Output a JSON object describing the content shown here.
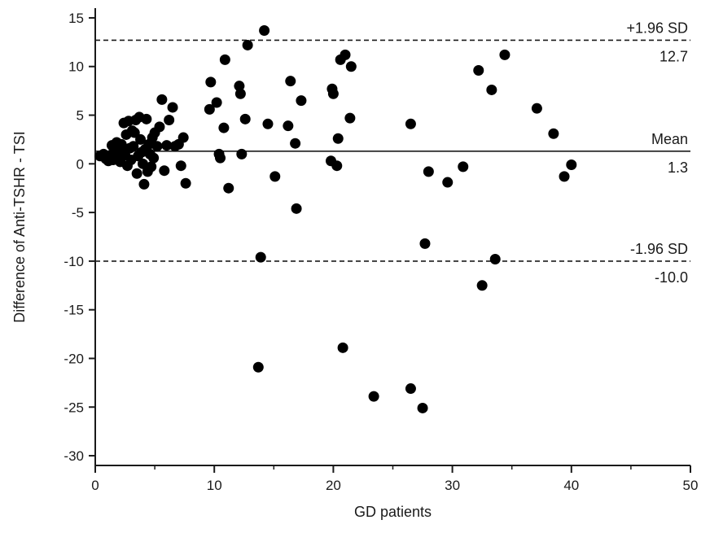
{
  "chart_data": {
    "type": "scatter",
    "xlabel": "GD patients",
    "ylabel": "Difference of Anti-TSHR - TSI",
    "xlim": [
      0,
      50
    ],
    "ylim": [
      -31,
      16
    ],
    "x_ticks": [
      0,
      10,
      20,
      30,
      40,
      50
    ],
    "y_ticks": [
      -30,
      -25,
      -20,
      -15,
      -10,
      -5,
      0,
      5,
      10,
      15
    ],
    "grid": false,
    "reference_lines": [
      {
        "name": "+1.96 SD",
        "value": 12.7,
        "value_label": "12.7",
        "style": "dashed"
      },
      {
        "name": "Mean",
        "value": 1.3,
        "value_label": "1.3",
        "style": "solid"
      },
      {
        "name": "-1.96 SD",
        "value": -10.0,
        "value_label": "-10.0",
        "style": "dashed"
      }
    ],
    "points": [
      {
        "x": 0.4,
        "y": 0.8
      },
      {
        "x": 0.7,
        "y": 1.0
      },
      {
        "x": 0.9,
        "y": 0.5
      },
      {
        "x": 1.1,
        "y": 0.3
      },
      {
        "x": 1.3,
        "y": 0.9
      },
      {
        "x": 1.4,
        "y": 1.9
      },
      {
        "x": 1.5,
        "y": 0.4
      },
      {
        "x": 1.6,
        "y": 1.2
      },
      {
        "x": 1.8,
        "y": 2.2
      },
      {
        "x": 1.9,
        "y": 0.6
      },
      {
        "x": 2.0,
        "y": 1.5
      },
      {
        "x": 2.1,
        "y": 0.2
      },
      {
        "x": 2.2,
        "y": 2.0
      },
      {
        "x": 2.3,
        "y": 1.1
      },
      {
        "x": 2.4,
        "y": 4.2
      },
      {
        "x": 2.5,
        "y": 0.9
      },
      {
        "x": 2.6,
        "y": 3.0
      },
      {
        "x": 2.7,
        "y": -0.2
      },
      {
        "x": 2.8,
        "y": 4.4
      },
      {
        "x": 2.9,
        "y": 1.6
      },
      {
        "x": 3.0,
        "y": 0.4
      },
      {
        "x": 3.1,
        "y": 3.4
      },
      {
        "x": 3.2,
        "y": 1.8
      },
      {
        "x": 3.3,
        "y": 3.2
      },
      {
        "x": 3.4,
        "y": 4.5
      },
      {
        "x": 3.5,
        "y": -1.0
      },
      {
        "x": 3.6,
        "y": 0.8
      },
      {
        "x": 3.7,
        "y": 4.8
      },
      {
        "x": 3.8,
        "y": 2.5
      },
      {
        "x": 3.9,
        "y": 1.2
      },
      {
        "x": 4.0,
        "y": 0.0
      },
      {
        "x": 4.1,
        "y": -2.1
      },
      {
        "x": 4.2,
        "y": 1.5
      },
      {
        "x": 4.3,
        "y": 4.6
      },
      {
        "x": 4.4,
        "y": -0.8
      },
      {
        "x": 4.5,
        "y": 2.0
      },
      {
        "x": 4.6,
        "y": 1.0
      },
      {
        "x": 4.7,
        "y": -0.3
      },
      {
        "x": 4.8,
        "y": 2.7
      },
      {
        "x": 4.9,
        "y": 0.6
      },
      {
        "x": 5.0,
        "y": 3.2
      },
      {
        "x": 5.2,
        "y": 1.8
      },
      {
        "x": 5.4,
        "y": 3.8
      },
      {
        "x": 5.6,
        "y": 6.6
      },
      {
        "x": 5.8,
        "y": -0.7
      },
      {
        "x": 6.0,
        "y": 1.9
      },
      {
        "x": 6.2,
        "y": 4.5
      },
      {
        "x": 6.5,
        "y": 5.8
      },
      {
        "x": 6.7,
        "y": 1.8
      },
      {
        "x": 7.0,
        "y": 2.0
      },
      {
        "x": 7.2,
        "y": -0.2
      },
      {
        "x": 7.4,
        "y": 2.7
      },
      {
        "x": 7.6,
        "y": -2.0
      },
      {
        "x": 9.6,
        "y": 5.6
      },
      {
        "x": 9.7,
        "y": 8.4
      },
      {
        "x": 10.2,
        "y": 6.3
      },
      {
        "x": 10.4,
        "y": 1.0
      },
      {
        "x": 10.5,
        "y": 0.6
      },
      {
        "x": 10.8,
        "y": 3.7
      },
      {
        "x": 10.9,
        "y": 10.7
      },
      {
        "x": 11.2,
        "y": -2.5
      },
      {
        "x": 12.1,
        "y": 8.0
      },
      {
        "x": 12.2,
        "y": 7.2
      },
      {
        "x": 12.3,
        "y": 1.0
      },
      {
        "x": 12.6,
        "y": 4.6
      },
      {
        "x": 12.8,
        "y": 12.2
      },
      {
        "x": 13.7,
        "y": -20.9
      },
      {
        "x": 13.9,
        "y": -9.6
      },
      {
        "x": 14.2,
        "y": 13.7
      },
      {
        "x": 14.5,
        "y": 4.1
      },
      {
        "x": 15.1,
        "y": -1.3
      },
      {
        "x": 16.2,
        "y": 3.9
      },
      {
        "x": 16.4,
        "y": 8.5
      },
      {
        "x": 16.8,
        "y": 2.1
      },
      {
        "x": 16.9,
        "y": -4.6
      },
      {
        "x": 17.3,
        "y": 6.5
      },
      {
        "x": 19.8,
        "y": 0.3
      },
      {
        "x": 19.9,
        "y": 7.7
      },
      {
        "x": 20.0,
        "y": 7.2
      },
      {
        "x": 20.3,
        "y": -0.2
      },
      {
        "x": 20.4,
        "y": 2.6
      },
      {
        "x": 20.6,
        "y": 10.7
      },
      {
        "x": 20.8,
        "y": -18.9
      },
      {
        "x": 21.0,
        "y": 11.2
      },
      {
        "x": 21.4,
        "y": 4.7
      },
      {
        "x": 21.5,
        "y": 10.0
      },
      {
        "x": 23.4,
        "y": -23.9
      },
      {
        "x": 26.5,
        "y": 4.1
      },
      {
        "x": 26.5,
        "y": -23.1
      },
      {
        "x": 27.5,
        "y": -25.1
      },
      {
        "x": 27.7,
        "y": -8.2
      },
      {
        "x": 28.0,
        "y": -0.8
      },
      {
        "x": 29.6,
        "y": -1.9
      },
      {
        "x": 30.9,
        "y": -0.3
      },
      {
        "x": 32.2,
        "y": 9.6
      },
      {
        "x": 32.5,
        "y": -12.5
      },
      {
        "x": 33.3,
        "y": 7.6
      },
      {
        "x": 33.6,
        "y": -9.8
      },
      {
        "x": 34.4,
        "y": 11.2
      },
      {
        "x": 37.1,
        "y": 5.7
      },
      {
        "x": 38.5,
        "y": 3.1
      },
      {
        "x": 39.4,
        "y": -1.3
      },
      {
        "x": 40.0,
        "y": -0.1
      }
    ]
  }
}
